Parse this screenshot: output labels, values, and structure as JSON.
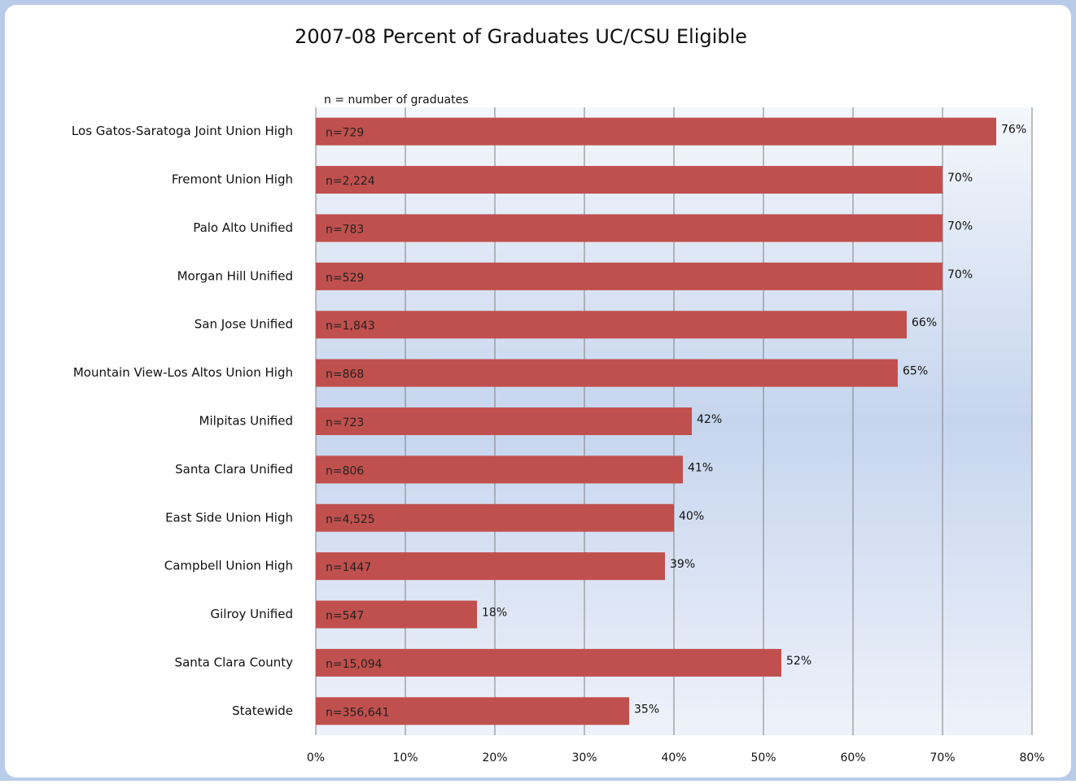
{
  "chart_data": {
    "type": "bar",
    "orientation": "horizontal",
    "title": "2007-08 Percent of Graduates UC/CSU Eligible",
    "annotation": "n = number of graduates",
    "categories": [
      "Los Gatos-Saratoga Joint Union High",
      "Fremont Union High",
      "Palo Alto Unified",
      "Morgan Hill Unified",
      "San Jose Unified",
      "Mountain View-Los Altos Union High",
      "Milpitas Unified",
      "Santa Clara  Unified",
      "East Side Union High",
      "Campbell Union High",
      "Gilroy Unified",
      "Santa Clara  County",
      "Statewide"
    ],
    "values": [
      76,
      70,
      70,
      70,
      66,
      65,
      42,
      41,
      40,
      39,
      18,
      52,
      35
    ],
    "value_labels": [
      "76%",
      "70%",
      "70%",
      "70%",
      "66%",
      "65%",
      "42%",
      "41%",
      "40%",
      "39%",
      "18%",
      "52%",
      "35%"
    ],
    "n_labels": [
      "n=729",
      "n=2,224",
      "n=783",
      "n=529",
      "n=1,843",
      "n=868",
      "n=723",
      "n=806",
      "n=4,525",
      "n=1447",
      "n=547",
      "n=15,094",
      "n=356,641"
    ],
    "color": "#c0504d",
    "xlim": [
      0,
      80
    ],
    "xticks": [
      {
        "value": 0,
        "label": "0%"
      },
      {
        "value": 10,
        "label": "10%"
      },
      {
        "value": 20,
        "label": "20%"
      },
      {
        "value": 30,
        "label": "30%"
      },
      {
        "value": 40,
        "label": "40%"
      },
      {
        "value": 50,
        "label": "50%"
      },
      {
        "value": 60,
        "label": "60%"
      },
      {
        "value": 70,
        "label": "70%"
      },
      {
        "value": 80,
        "label": "80%"
      }
    ],
    "grid": true
  }
}
